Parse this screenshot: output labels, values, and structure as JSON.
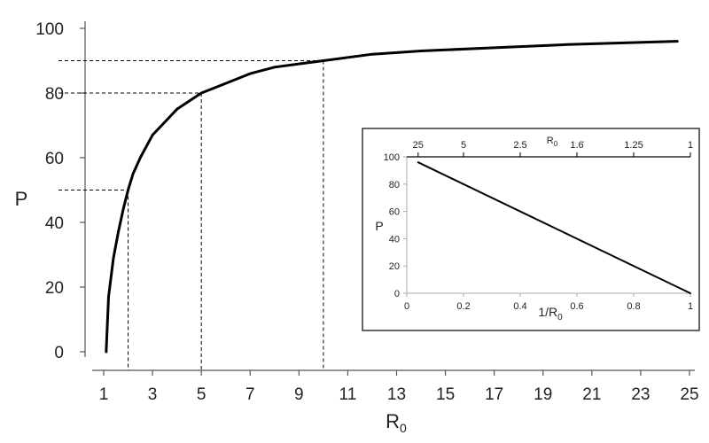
{
  "chart_data": [
    {
      "type": "line",
      "xlabel": "R",
      "xlabel_sub": "0",
      "ylabel": "P",
      "xlim": [
        1,
        25
      ],
      "ylim": [
        0,
        100
      ],
      "xticks": [
        1,
        3,
        5,
        7,
        9,
        11,
        13,
        15,
        17,
        19,
        21,
        23,
        25
      ],
      "yticks": [
        0,
        20,
        40,
        60,
        80,
        100
      ],
      "grid": false,
      "line_color": "#000000",
      "x": [
        1.1,
        1.2,
        1.4,
        1.6,
        1.8,
        2.0,
        2.2,
        2.5,
        3.0,
        3.5,
        4.0,
        5.0,
        6.0,
        7.0,
        8.0,
        9.0,
        10.0,
        12.0,
        14.0,
        17.0,
        20.0,
        24.5
      ],
      "y": [
        0,
        17,
        29,
        37,
        44,
        50,
        55,
        60,
        67,
        71,
        75,
        80,
        83,
        86,
        88,
        89,
        90,
        92,
        93,
        94,
        95,
        96
      ],
      "reference_points": [
        {
          "x": 2,
          "y": 50
        },
        {
          "x": 5,
          "y": 80
        },
        {
          "x": 10,
          "y": 90
        }
      ]
    },
    {
      "type": "line",
      "xlabel": "1/R",
      "xlabel_sub": "0",
      "ylabel": "P",
      "top_axis_label": "R",
      "top_axis_label_sub": "0",
      "xlim": [
        0,
        1
      ],
      "ylim": [
        0,
        100
      ],
      "xticks": [
        0,
        0.2,
        0.4,
        0.6,
        0.8,
        1
      ],
      "xtick_labels": [
        "0",
        "0.2",
        "0.4",
        "0.6",
        "0.8",
        "1"
      ],
      "yticks": [
        0,
        20,
        40,
        60,
        80,
        100
      ],
      "top_ticks": [
        {
          "value": 0.04,
          "label": "25"
        },
        {
          "value": 0.2,
          "label": "5"
        },
        {
          "value": 0.4,
          "label": "2.5"
        },
        {
          "value": 0.6,
          "label": "1.6̇"
        },
        {
          "value": 0.8,
          "label": "1.25"
        },
        {
          "value": 1.0,
          "label": "1"
        }
      ],
      "line_color": "#000000",
      "x": [
        0.04,
        1.0
      ],
      "y": [
        96,
        0
      ]
    }
  ]
}
